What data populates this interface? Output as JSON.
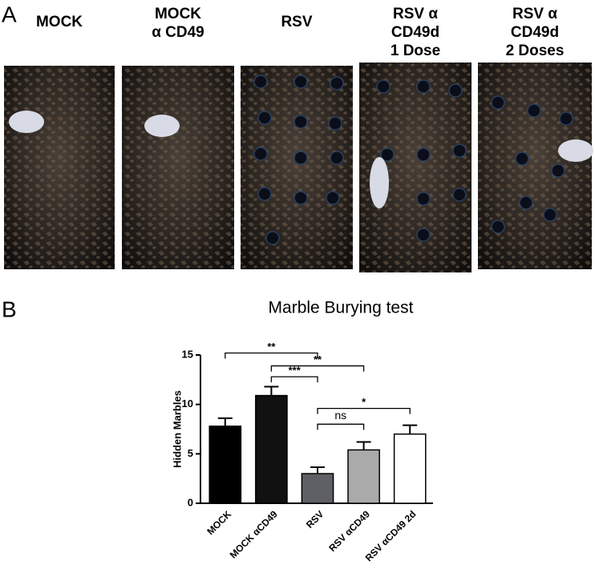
{
  "panel_a": {
    "letter": "A",
    "columns": [
      [
        "MOCK"
      ],
      [
        "MOCK",
        "α CD49"
      ],
      [
        "RSV"
      ],
      [
        "RSV α",
        "CD49d",
        "1 Dose"
      ],
      [
        "RSV α",
        "CD49d",
        "2 Doses"
      ]
    ]
  },
  "chart_data": {
    "type": "bar",
    "panel_label": "B",
    "title": "Marble Burying test",
    "y_label": "Hidden Marbles",
    "categories": [
      "MOCK",
      "MOCK αCD49",
      "RSV",
      "RSV αCD49",
      "RSV αCD49 2d"
    ],
    "values": [
      7.8,
      10.9,
      3.0,
      5.4,
      7.0
    ],
    "errors": [
      0.8,
      0.9,
      0.65,
      0.8,
      0.9
    ],
    "colors": [
      "#000000",
      "#111111",
      "#5f5f66",
      "#aaaaaa",
      "#ffffff"
    ],
    "ylim": [
      0,
      15
    ],
    "yticks": [
      0,
      5,
      10,
      15
    ],
    "annotations": [
      {
        "label": "**",
        "from": 0,
        "to": 2,
        "y": 15.2
      },
      {
        "label": "**",
        "from": 1,
        "to": 3,
        "y": 13.9
      },
      {
        "label": "***",
        "from": 1,
        "to": 2,
        "y": 12.8
      },
      {
        "label": "*",
        "from": 2,
        "to": 4,
        "y": 9.6
      },
      {
        "label": "ns",
        "from": 2,
        "to": 3,
        "y": 8.0
      }
    ]
  }
}
